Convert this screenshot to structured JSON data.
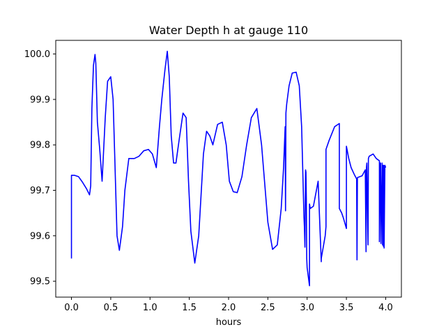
{
  "chart_data": {
    "type": "line",
    "title": "Water Depth h at gauge 110",
    "xlabel": "hours",
    "ylabel": "",
    "xlim": [
      -0.2,
      4.2
    ],
    "ylim": [
      99.465,
      100.03
    ],
    "xticks": [
      {
        "value": 0.0,
        "label": "0.0"
      },
      {
        "value": 0.5,
        "label": "0.5"
      },
      {
        "value": 1.0,
        "label": "1.0"
      },
      {
        "value": 1.5,
        "label": "1.5"
      },
      {
        "value": 2.0,
        "label": "2.0"
      },
      {
        "value": 2.5,
        "label": "2.5"
      },
      {
        "value": 3.0,
        "label": "3.0"
      },
      {
        "value": 3.5,
        "label": "3.5"
      },
      {
        "value": 4.0,
        "label": "4.0"
      }
    ],
    "yticks": [
      {
        "value": 99.5,
        "label": "99.5"
      },
      {
        "value": 99.6,
        "label": "99.6"
      },
      {
        "value": 99.7,
        "label": "99.7"
      },
      {
        "value": 99.8,
        "label": "99.8"
      },
      {
        "value": 99.9,
        "label": "99.9"
      },
      {
        "value": 100.0,
        "label": "100.0"
      }
    ],
    "grid": false,
    "legend": "none",
    "series": [
      {
        "color": "#0000ff",
        "x": [
          0.0,
          0.0,
          0.04,
          0.09,
          0.14,
          0.19,
          0.23,
          0.245,
          0.26,
          0.28,
          0.3,
          0.31,
          0.33,
          0.36,
          0.39,
          0.43,
          0.46,
          0.5,
          0.53,
          0.55,
          0.58,
          0.61,
          0.65,
          0.68,
          0.73,
          0.8,
          0.86,
          0.92,
          0.98,
          1.03,
          1.08,
          1.12,
          1.15,
          1.19,
          1.22,
          1.245,
          1.27,
          1.3,
          1.33,
          1.37,
          1.42,
          1.46,
          1.49,
          1.52,
          1.57,
          1.62,
          1.68,
          1.72,
          1.76,
          1.8,
          1.86,
          1.92,
          1.97,
          2.01,
          2.06,
          2.11,
          2.17,
          2.23,
          2.29,
          2.36,
          2.42,
          2.5,
          2.56,
          2.62,
          2.67,
          2.7,
          2.72,
          2.725,
          2.73,
          2.735,
          2.74,
          2.77,
          2.81,
          2.86,
          2.9,
          2.93,
          2.96,
          2.965,
          2.972,
          2.98,
          2.985,
          2.99,
          2.995,
          3.0,
          3.03,
          3.03,
          3.04,
          3.08,
          3.14,
          3.18,
          3.18,
          3.23,
          3.24,
          3.24,
          3.28,
          3.35,
          3.41,
          3.41,
          3.44,
          3.46,
          3.5,
          3.5,
          3.53,
          3.56,
          3.6,
          3.63,
          3.635,
          3.64,
          3.7,
          3.74,
          3.75,
          3.755,
          3.76,
          3.775,
          3.78,
          3.79,
          3.84,
          3.88,
          3.92,
          3.92,
          3.93,
          3.935,
          3.94,
          3.955,
          3.96,
          3.965,
          3.97,
          3.975,
          3.98,
          3.99,
          4.0
        ],
        "y": [
          99.55,
          99.733,
          99.733,
          99.73,
          99.718,
          99.704,
          99.69,
          99.71,
          99.88,
          99.975,
          99.999,
          99.98,
          99.85,
          99.79,
          99.72,
          99.86,
          99.94,
          99.95,
          99.9,
          99.78,
          99.6,
          99.568,
          99.62,
          99.7,
          99.77,
          99.77,
          99.775,
          99.787,
          99.79,
          99.78,
          99.75,
          99.84,
          99.9,
          99.965,
          100.006,
          99.95,
          99.82,
          99.76,
          99.76,
          99.81,
          99.87,
          99.86,
          99.72,
          99.61,
          99.54,
          99.6,
          99.78,
          99.83,
          99.82,
          99.8,
          99.845,
          99.85,
          99.8,
          99.72,
          99.697,
          99.695,
          99.73,
          99.8,
          99.86,
          99.88,
          99.8,
          99.63,
          99.57,
          99.58,
          99.66,
          99.75,
          99.84,
          99.655,
          99.87,
          99.88,
          99.89,
          99.93,
          99.958,
          99.96,
          99.93,
          99.84,
          99.64,
          99.62,
          99.575,
          99.745,
          99.74,
          99.68,
          99.55,
          99.53,
          99.49,
          99.67,
          99.66,
          99.665,
          99.72,
          99.543,
          99.55,
          99.6,
          99.62,
          99.79,
          99.81,
          99.84,
          99.847,
          99.66,
          99.65,
          99.64,
          99.616,
          99.797,
          99.77,
          99.75,
          99.735,
          99.725,
          99.547,
          99.728,
          99.732,
          99.745,
          99.565,
          99.75,
          99.76,
          99.58,
          99.77,
          99.775,
          99.78,
          99.77,
          99.765,
          99.587,
          99.76,
          99.76,
          99.583,
          99.76,
          99.58,
          99.755,
          99.577,
          99.755,
          99.573,
          99.755,
          99.75
        ]
      }
    ]
  }
}
